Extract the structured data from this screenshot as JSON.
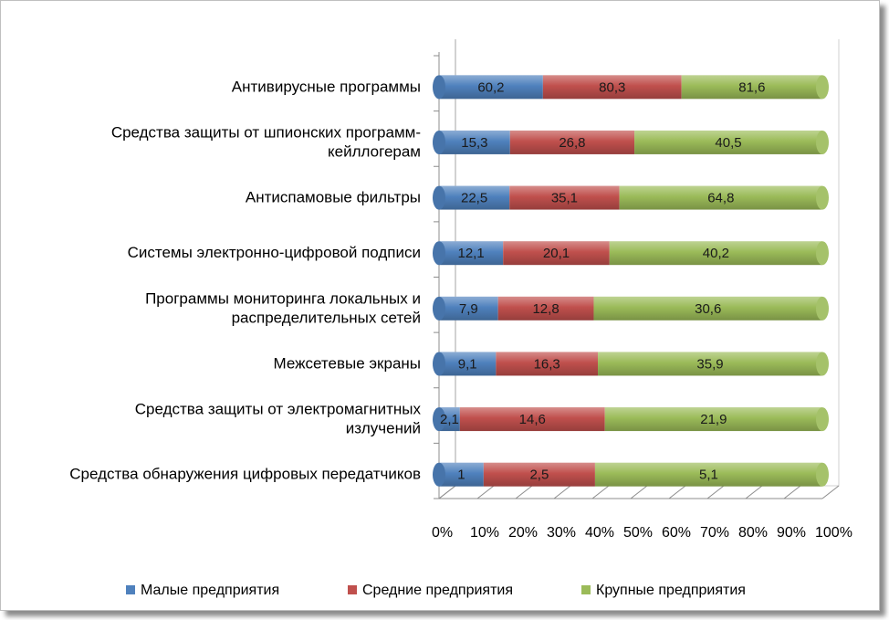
{
  "chart_data": {
    "type": "bar",
    "orientation": "horizontal",
    "stacked": "percent",
    "three_d": true,
    "categories": [
      [
        "Антивирусные программы"
      ],
      [
        "Средства защиты от шпионских программ-",
        "кейллогерам"
      ],
      [
        "Антиспамовые фильтры"
      ],
      [
        "Системы электронно-цифровой подписи"
      ],
      [
        "Программы мониторинга локальных и",
        "распределительных сетей"
      ],
      [
        "Межсетевые экраны"
      ],
      [
        "Средства защиты от электромагнитных",
        "излучений"
      ],
      [
        "Средства обнаружения цифровых передатчиков"
      ]
    ],
    "series": [
      {
        "name": "Малые предприятия",
        "color": "#4f81bd",
        "values": [
          60.2,
          15.3,
          22.5,
          12.1,
          7.9,
          9.1,
          2.1,
          1
        ],
        "labels": [
          "60,2",
          "15,3",
          "22,5",
          "12,1",
          "7,9",
          "9,1",
          "2,1",
          "1"
        ]
      },
      {
        "name": "Средние предприятия",
        "color": "#c0504d",
        "values": [
          80.3,
          26.8,
          35.1,
          20.1,
          12.8,
          16.3,
          14.6,
          2.5
        ],
        "labels": [
          "80,3",
          "26,8",
          "35,1",
          "20,1",
          "12,8",
          "16,3",
          "14,6",
          "2,5"
        ]
      },
      {
        "name": "Крупные предприятия",
        "color": "#9bbb59",
        "values": [
          81.6,
          40.5,
          64.8,
          40.2,
          30.6,
          35.9,
          21.9,
          5.1
        ],
        "labels": [
          "81,6",
          "40,5",
          "64,8",
          "40,2",
          "30,6",
          "35,9",
          "21,9",
          "5,1"
        ]
      }
    ],
    "x_ticks": [
      "0%",
      "10%",
      "20%",
      "30%",
      "40%",
      "50%",
      "60%",
      "70%",
      "80%",
      "90%",
      "100%"
    ],
    "xlim": [
      0,
      100
    ],
    "grid": false,
    "legend_position": "bottom"
  }
}
